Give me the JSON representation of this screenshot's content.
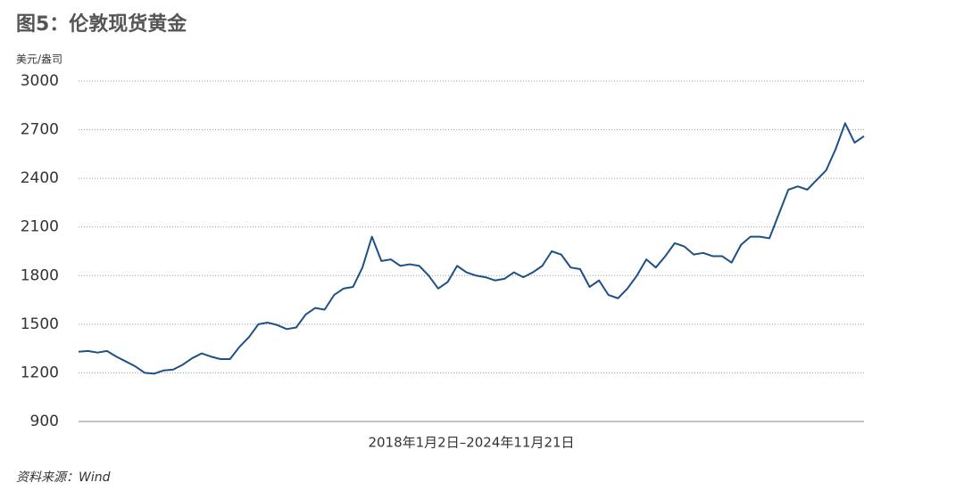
{
  "chart_data": {
    "type": "line",
    "title": "图5：伦敦现货黄金",
    "y_label": "美元/盎司",
    "x_label": "2018年1月2日–2024年11月21日",
    "source": "资料来源：Wind",
    "series": [
      {
        "name": "伦敦现货黄金",
        "color": "#1d5186",
        "values": [
          1330,
          1335,
          1325,
          1335,
          1300,
          1270,
          1240,
          1200,
          1195,
          1215,
          1220,
          1250,
          1290,
          1320,
          1300,
          1285,
          1285,
          1360,
          1420,
          1500,
          1510,
          1495,
          1470,
          1480,
          1560,
          1600,
          1590,
          1680,
          1720,
          1730,
          1850,
          2040,
          1890,
          1900,
          1860,
          1870,
          1860,
          1800,
          1720,
          1760,
          1860,
          1820,
          1800,
          1790,
          1770,
          1780,
          1820,
          1790,
          1820,
          1860,
          1950,
          1930,
          1850,
          1840,
          1730,
          1770,
          1680,
          1660,
          1720,
          1800,
          1900,
          1850,
          1920,
          2000,
          1980,
          1930,
          1940,
          1920,
          1920,
          1880,
          1990,
          2040,
          2040,
          2030,
          2180,
          2330,
          2350,
          2330,
          2390,
          2450,
          2580,
          2740,
          2620,
          2660
        ]
      }
    ],
    "ylim": [
      900,
      3000
    ],
    "yticks": [
      900,
      1200,
      1500,
      1800,
      2100,
      2400,
      2700,
      3000
    ],
    "grid": true
  }
}
